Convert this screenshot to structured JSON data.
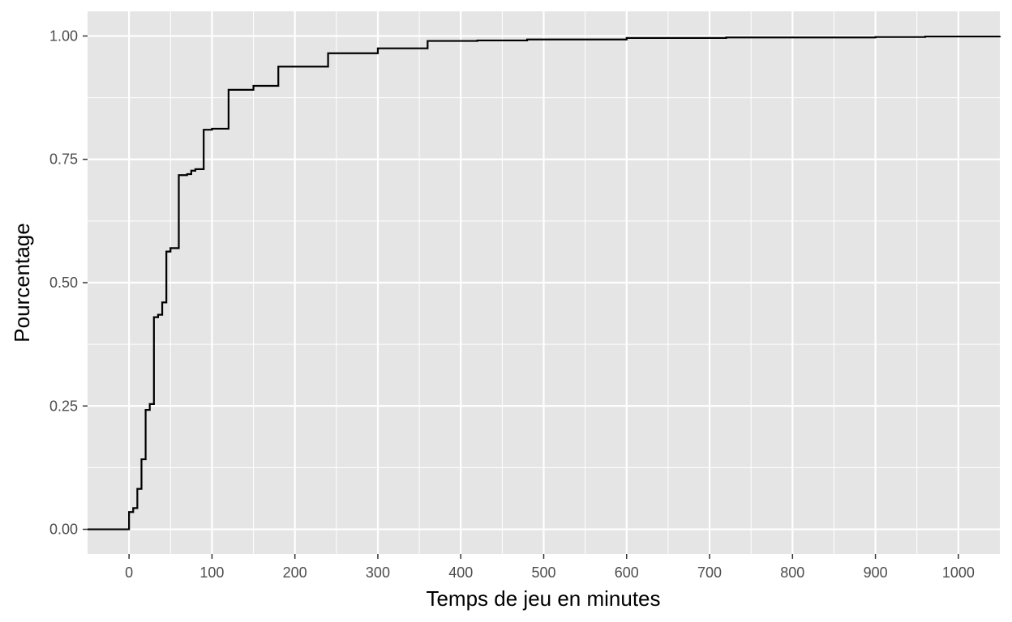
{
  "chart_data": {
    "type": "line",
    "subtype": "step (empirical cumulative distribution)",
    "xlabel": "Temps de jeu en minutes",
    "ylabel": "Pourcentage",
    "xlim": [
      -50,
      1050
    ],
    "ylim": [
      -0.05,
      1.05
    ],
    "x_ticks": [
      0,
      100,
      200,
      300,
      400,
      500,
      600,
      700,
      800,
      900,
      1000
    ],
    "x_tick_labels": [
      "0",
      "100",
      "200",
      "300",
      "400",
      "500",
      "600",
      "700",
      "800",
      "900",
      "1000"
    ],
    "y_ticks": [
      0,
      0.25,
      0.5,
      0.75,
      1
    ],
    "y_tick_labels": [
      "0.00",
      "0.25",
      "0.50",
      "0.75",
      "1.00"
    ],
    "grid": true,
    "background": "#e5e5e5",
    "grid_color": "#ffffff",
    "line_color": "#000000",
    "series": [
      {
        "x": [
          -50,
          0,
          0,
          5,
          10,
          15,
          20,
          25,
          30,
          35,
          40,
          45,
          50,
          60,
          70,
          75,
          80,
          90,
          100,
          120,
          150,
          180,
          240,
          300,
          360,
          420,
          480,
          600,
          720,
          900,
          960,
          1050
        ],
        "y": [
          0,
          0,
          0.035,
          0.043,
          0.082,
          0.142,
          0.242,
          0.254,
          0.43,
          0.435,
          0.46,
          0.563,
          0.57,
          0.718,
          0.72,
          0.727,
          0.73,
          0.81,
          0.812,
          0.891,
          0.899,
          0.938,
          0.965,
          0.975,
          0.99,
          0.991,
          0.993,
          0.996,
          0.997,
          0.998,
          0.999,
          1.0
        ]
      }
    ]
  }
}
